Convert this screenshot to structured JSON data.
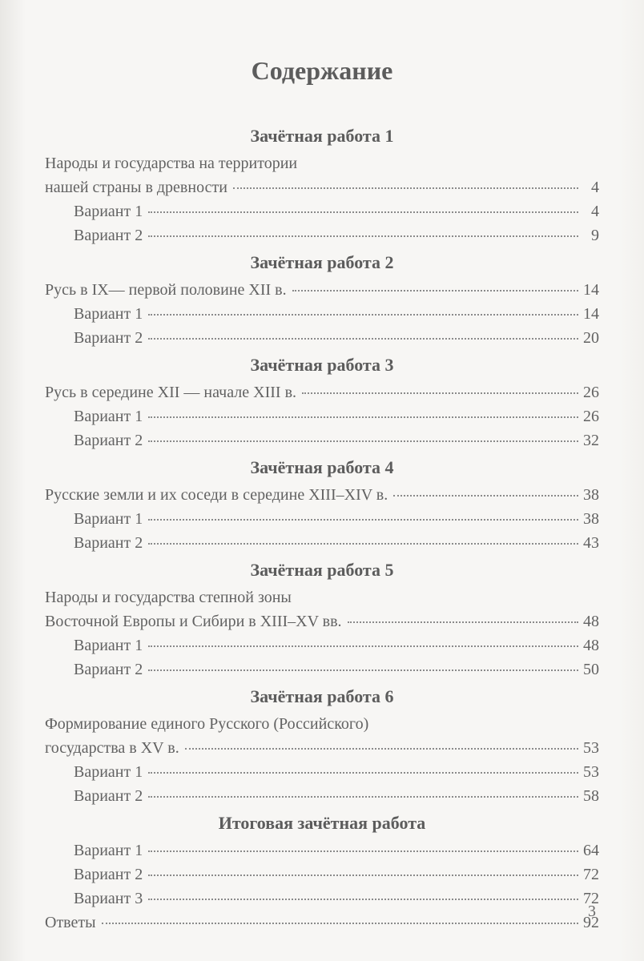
{
  "title": "Содержание",
  "page_number": "3",
  "sections": [
    {
      "heading": "Зачётная работа 1",
      "entries": [
        {
          "label_lines": [
            "Народы и государства на территории",
            "нашей страны в древности"
          ],
          "page": "4",
          "indent": false
        },
        {
          "label_lines": [
            "Вариант 1"
          ],
          "page": "4",
          "indent": true
        },
        {
          "label_lines": [
            "Вариант 2"
          ],
          "page": "9",
          "indent": true
        }
      ]
    },
    {
      "heading": "Зачётная работа 2",
      "entries": [
        {
          "label_lines": [
            "Русь в IX— первой половине XII в."
          ],
          "page": "14",
          "indent": false
        },
        {
          "label_lines": [
            "Вариант 1"
          ],
          "page": "14",
          "indent": true
        },
        {
          "label_lines": [
            "Вариант 2"
          ],
          "page": "20",
          "indent": true
        }
      ]
    },
    {
      "heading": "Зачётная работа 3",
      "entries": [
        {
          "label_lines": [
            "Русь в середине XII — начале XIII в."
          ],
          "page": "26",
          "indent": false
        },
        {
          "label_lines": [
            "Вариант 1"
          ],
          "page": "26",
          "indent": true
        },
        {
          "label_lines": [
            "Вариант 2"
          ],
          "page": "32",
          "indent": true
        }
      ]
    },
    {
      "heading": "Зачётная работа 4",
      "entries": [
        {
          "label_lines": [
            "Русские земли и их соседи в середине XIII–XIV в."
          ],
          "page": "38",
          "indent": false
        },
        {
          "label_lines": [
            "Вариант 1"
          ],
          "page": "38",
          "indent": true
        },
        {
          "label_lines": [
            "Вариант 2"
          ],
          "page": "43",
          "indent": true
        }
      ]
    },
    {
      "heading": "Зачётная работа 5",
      "entries": [
        {
          "label_lines": [
            "Народы и государства степной зоны",
            "Восточной Европы и Сибири в XIII–XV вв."
          ],
          "page": "48",
          "indent": false
        },
        {
          "label_lines": [
            "Вариант 1"
          ],
          "page": "48",
          "indent": true
        },
        {
          "label_lines": [
            "Вариант 2"
          ],
          "page": "50",
          "indent": true
        }
      ]
    },
    {
      "heading": "Зачётная работа 6",
      "entries": [
        {
          "label_lines": [
            "Формирование единого Русского (Российского)",
            "государства в XV в."
          ],
          "page": "53",
          "indent": false
        },
        {
          "label_lines": [
            "Вариант 1"
          ],
          "page": "53",
          "indent": true
        },
        {
          "label_lines": [
            "Вариант 2"
          ],
          "page": "58",
          "indent": true
        }
      ]
    },
    {
      "heading": "Итоговая зачётная работа",
      "entries": [
        {
          "label_lines": [
            "Вариант 1"
          ],
          "page": "64",
          "indent": true
        },
        {
          "label_lines": [
            "Вариант 2"
          ],
          "page": "72",
          "indent": true
        },
        {
          "label_lines": [
            "Вариант 3"
          ],
          "page": "72",
          "indent": true
        }
      ]
    }
  ],
  "final_entries": [
    {
      "label_lines": [
        "Ответы"
      ],
      "page": "92",
      "indent": false
    }
  ]
}
